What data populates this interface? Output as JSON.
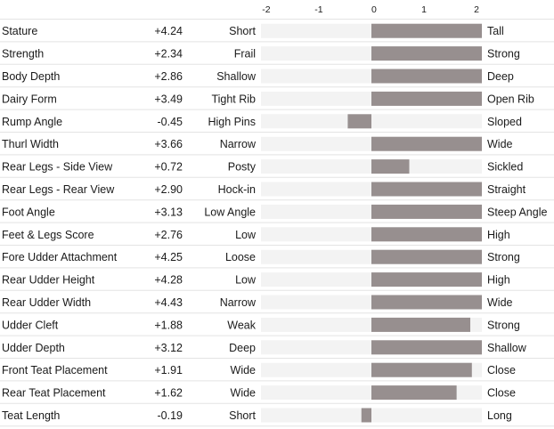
{
  "chart_data": {
    "type": "bar",
    "orientation": "horizontal",
    "axis": {
      "xlim": [
        -2.1,
        2.1
      ],
      "ticks": [
        -2,
        -1,
        0,
        1,
        2
      ],
      "tick_labels": [
        "-2",
        "-1",
        "0",
        "1",
        "2"
      ],
      "grid": false
    },
    "colors": {
      "bar": "#978f8f",
      "track": "#f3f3f3",
      "divider": "#e3e3e3"
    },
    "rows": [
      {
        "trait": "Stature",
        "value_label": "+4.24",
        "low": "Short",
        "high": "Tall",
        "value": 4.24
      },
      {
        "trait": "Strength",
        "value_label": "+2.34",
        "low": "Frail",
        "high": "Strong",
        "value": 2.34
      },
      {
        "trait": "Body Depth",
        "value_label": "+2.86",
        "low": "Shallow",
        "high": "Deep",
        "value": 2.86
      },
      {
        "trait": "Dairy Form",
        "value_label": "+3.49",
        "low": "Tight Rib",
        "high": "Open Rib",
        "value": 3.49
      },
      {
        "trait": "Rump Angle",
        "value_label": "-0.45",
        "low": "High Pins",
        "high": "Sloped",
        "value": -0.45
      },
      {
        "trait": "Thurl Width",
        "value_label": "+3.66",
        "low": "Narrow",
        "high": "Wide",
        "value": 3.66
      },
      {
        "trait": "Rear Legs - Side View",
        "value_label": "+0.72",
        "low": "Posty",
        "high": "Sickled",
        "value": 0.72
      },
      {
        "trait": "Rear Legs - Rear View",
        "value_label": "+2.90",
        "low": "Hock-in",
        "high": "Straight",
        "value": 2.9
      },
      {
        "trait": "Foot Angle",
        "value_label": "+3.13",
        "low": "Low Angle",
        "high": "Steep Angle",
        "value": 3.13
      },
      {
        "trait": "Feet & Legs Score",
        "value_label": "+2.76",
        "low": "Low",
        "high": "High",
        "value": 2.76
      },
      {
        "trait": "Fore Udder Attachment",
        "value_label": "+4.25",
        "low": "Loose",
        "high": "Strong",
        "value": 4.25
      },
      {
        "trait": "Rear Udder Height",
        "value_label": "+4.28",
        "low": "Low",
        "high": "High",
        "value": 4.28
      },
      {
        "trait": "Rear Udder Width",
        "value_label": "+4.43",
        "low": "Narrow",
        "high": "Wide",
        "value": 4.43
      },
      {
        "trait": "Udder Cleft",
        "value_label": "+1.88",
        "low": "Weak",
        "high": "Strong",
        "value": 1.88
      },
      {
        "trait": "Udder Depth",
        "value_label": "+3.12",
        "low": "Deep",
        "high": "Shallow",
        "value": 3.12
      },
      {
        "trait": "Front Teat Placement",
        "value_label": "+1.91",
        "low": "Wide",
        "high": "Close",
        "value": 1.91
      },
      {
        "trait": "Rear Teat Placement",
        "value_label": "+1.62",
        "low": "Wide",
        "high": "Close",
        "value": 1.62
      },
      {
        "trait": "Teat Length",
        "value_label": "-0.19",
        "low": "Short",
        "high": "Long",
        "value": -0.19
      }
    ]
  }
}
